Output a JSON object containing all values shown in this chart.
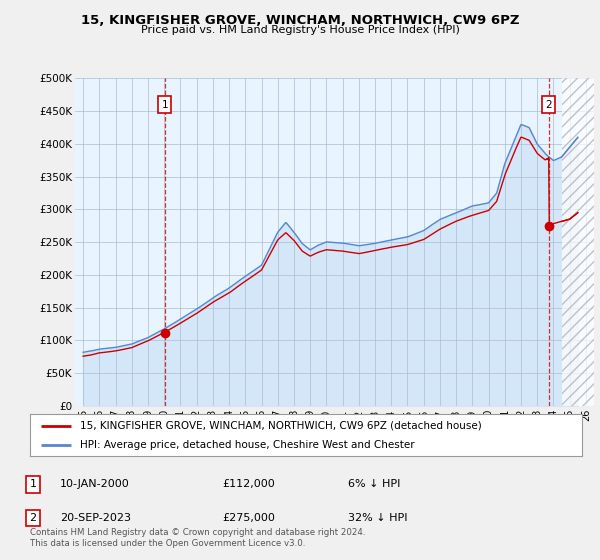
{
  "title": "15, KINGFISHER GROVE, WINCHAM, NORTHWICH, CW9 6PZ",
  "subtitle": "Price paid vs. HM Land Registry's House Price Index (HPI)",
  "ylabel_ticks": [
    "£0",
    "£50K",
    "£100K",
    "£150K",
    "£200K",
    "£250K",
    "£300K",
    "£350K",
    "£400K",
    "£450K",
    "£500K"
  ],
  "ytick_vals": [
    0,
    50000,
    100000,
    150000,
    200000,
    250000,
    300000,
    350000,
    400000,
    450000,
    500000
  ],
  "xlim_start": 1994.5,
  "xlim_end": 2026.5,
  "ylim_min": 0,
  "ylim_max": 500000,
  "sale1_date": "10-JAN-2000",
  "sale1_price": 112000,
  "sale1_pct": "6% ↓ HPI",
  "sale1_x": 2000.03,
  "sale1_label": "1",
  "sale2_date": "20-SEP-2023",
  "sale2_price": 275000,
  "sale2_pct": "32% ↓ HPI",
  "sale2_x": 2023.72,
  "sale2_label": "2",
  "hpi_color": "#5588cc",
  "hpi_fill_color": "#ddeeff",
  "sale_color": "#cc0000",
  "plot_bg_color": "#e8f0f8",
  "hatch_start": 2024.5,
  "legend1_text": "15, KINGFISHER GROVE, WINCHAM, NORTHWICH, CW9 6PZ (detached house)",
  "legend2_text": "HPI: Average price, detached house, Cheshire West and Chester",
  "footnote": "Contains HM Land Registry data © Crown copyright and database right 2024.\nThis data is licensed under the Open Government Licence v3.0.",
  "background_color": "#f0f0f0",
  "plot_face_color": "#e8f4ff"
}
